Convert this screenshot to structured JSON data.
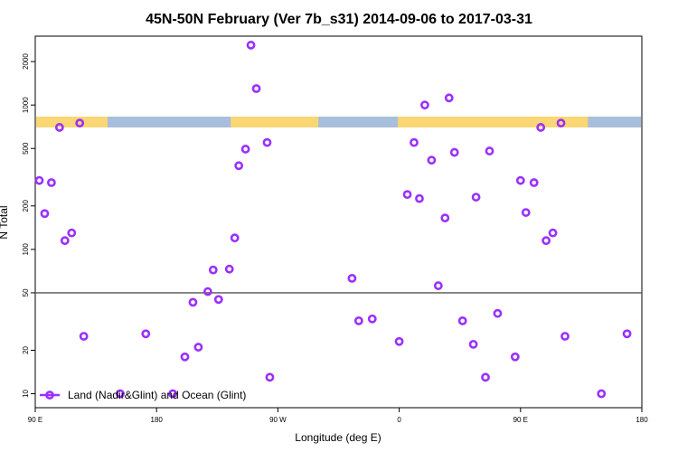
{
  "chart_data": {
    "type": "scatter",
    "title": "45N-50N February (Ver 7b_s31)   2014-09-06 to 2017-03-31",
    "xlabel": "Longitude (deg E)",
    "ylabel": "N Total",
    "x_ticks": [
      {
        "value": 90,
        "label": "90 E"
      },
      {
        "value": 180,
        "label": "180"
      },
      {
        "value": 270,
        "label": "90 W"
      },
      {
        "value": 360,
        "label": "0"
      },
      {
        "value": 450,
        "label": "90 E"
      },
      {
        "value": 540,
        "label": "180"
      }
    ],
    "y_ticks": [
      {
        "value": 10,
        "label": "10"
      },
      {
        "value": 20,
        "label": "20"
      },
      {
        "value": 50,
        "label": "50"
      },
      {
        "value": 100,
        "label": "100"
      },
      {
        "value": 200,
        "label": "200"
      },
      {
        "value": 500,
        "label": "500"
      },
      {
        "value": 1000,
        "label": "1000"
      },
      {
        "value": 2000,
        "label": "2000"
      }
    ],
    "xlim": [
      90,
      540
    ],
    "ylim": [
      8,
      3000
    ],
    "y_scale": "log",
    "reference_line": 50,
    "land_ocean_strip": {
      "land_color": "#f9d774",
      "ocean_color": "#a8bedb",
      "land_segments": [
        [
          90,
          143
        ],
        [
          235,
          300
        ],
        [
          359,
          500
        ]
      ]
    },
    "series": [
      {
        "name": "Land (Nadir&Glint) and Ocean (Glint)",
        "color": "#9b30ff",
        "marker": "open-circle",
        "points": [
          [
            93,
            300
          ],
          [
            97,
            177
          ],
          [
            102,
            290
          ],
          [
            108,
            700
          ],
          [
            112,
            115
          ],
          [
            117,
            130
          ],
          [
            123,
            750
          ],
          [
            126,
            25
          ],
          [
            153,
            10
          ],
          [
            172,
            26
          ],
          [
            192,
            10
          ],
          [
            201,
            18
          ],
          [
            207,
            43
          ],
          [
            211,
            21
          ],
          [
            218,
            51
          ],
          [
            222,
            72
          ],
          [
            226,
            45
          ],
          [
            234,
            73
          ],
          [
            238,
            120
          ],
          [
            241,
            380
          ],
          [
            246,
            495
          ],
          [
            250,
            2600
          ],
          [
            254,
            1300
          ],
          [
            262,
            550
          ],
          [
            264,
            13
          ],
          [
            325,
            63
          ],
          [
            330,
            32
          ],
          [
            340,
            33
          ],
          [
            360,
            23
          ],
          [
            366,
            240
          ],
          [
            371,
            550
          ],
          [
            375,
            225
          ],
          [
            379,
            1000
          ],
          [
            384,
            415
          ],
          [
            389,
            56
          ],
          [
            394,
            165
          ],
          [
            397,
            1120
          ],
          [
            401,
            470
          ],
          [
            407,
            32
          ],
          [
            415,
            22
          ],
          [
            417,
            230
          ],
          [
            424,
            13
          ],
          [
            427,
            480
          ],
          [
            433,
            36
          ],
          [
            446,
            18
          ],
          [
            450,
            300
          ],
          [
            454,
            180
          ],
          [
            460,
            290
          ],
          [
            465,
            700
          ],
          [
            469,
            115
          ],
          [
            474,
            130
          ],
          [
            480,
            750
          ],
          [
            483,
            25
          ],
          [
            510,
            10
          ],
          [
            529,
            26
          ]
        ]
      }
    ],
    "legend": {
      "position": "bottom-left",
      "entries": [
        "Land (Nadir&Glint) and Ocean (Glint)"
      ]
    },
    "grid": false
  }
}
